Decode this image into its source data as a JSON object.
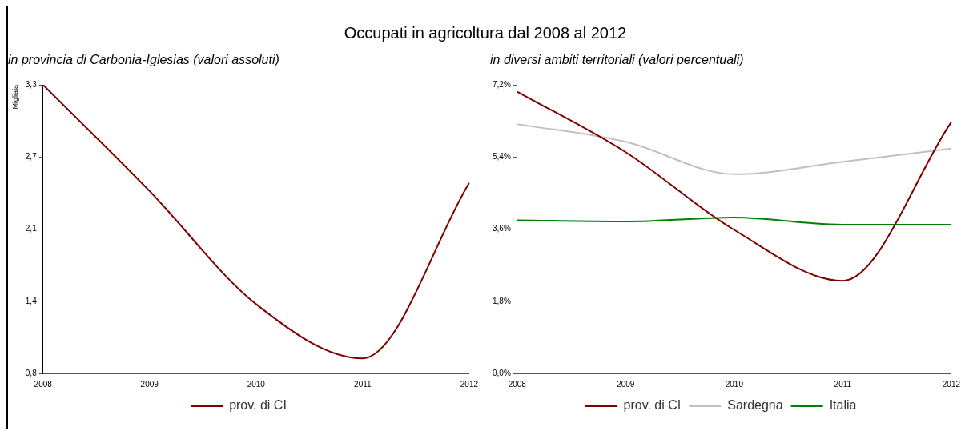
{
  "chart_data": [
    {
      "type": "line",
      "title": "Occupati in agricoltura dal 2008 al 2012",
      "subtitle": "in provincia di Carbonia-Iglesias (valori assoluti)",
      "ylabel": "Migliaia",
      "categories": [
        "2008",
        "2009",
        "2010",
        "2011",
        "2012"
      ],
      "series": [
        {
          "name": "prov. di CI",
          "color": "#800000",
          "values": [
            3.3,
            2.38,
            1.4,
            0.93,
            2.45
          ]
        }
      ],
      "ylim": [
        0.8,
        3.3
      ],
      "yticks": [
        {
          "value": 0.8,
          "label": "0,8"
        },
        {
          "value": 1.425,
          "label": "1,4"
        },
        {
          "value": 2.05,
          "label": "2,1"
        },
        {
          "value": 2.675,
          "label": "2,7"
        },
        {
          "value": 3.3,
          "label": "3,3"
        }
      ],
      "grid": false,
      "legend": "bottom",
      "marker": "none",
      "line_style": "solid"
    },
    {
      "type": "line",
      "subtitle": "in diversi ambiti territoriali (valori percentuali)",
      "categories": [
        "2008",
        "2009",
        "2010",
        "2011",
        "2012"
      ],
      "series": [
        {
          "name": "prov. di CI",
          "color": "#800000",
          "values": [
            7.03,
            5.52,
            3.58,
            2.31,
            6.27
          ]
        },
        {
          "name": "Sardegna",
          "color": "#c0c0c0",
          "values": [
            6.22,
            5.78,
            4.97,
            5.28,
            5.61
          ]
        },
        {
          "name": "Italia",
          "color": "#008000",
          "values": [
            3.82,
            3.79,
            3.89,
            3.71,
            3.71
          ]
        }
      ],
      "ylim": [
        0,
        7.2
      ],
      "yticks": [
        {
          "value": 0,
          "label": "0,0%"
        },
        {
          "value": 1.8,
          "label": "1,8%"
        },
        {
          "value": 3.6,
          "label": "3,6%"
        },
        {
          "value": 5.4,
          "label": "5,4%"
        },
        {
          "value": 7.2,
          "label": "7,2%"
        }
      ],
      "grid": false,
      "legend": "bottom",
      "marker": "none",
      "line_style": "solid"
    }
  ]
}
